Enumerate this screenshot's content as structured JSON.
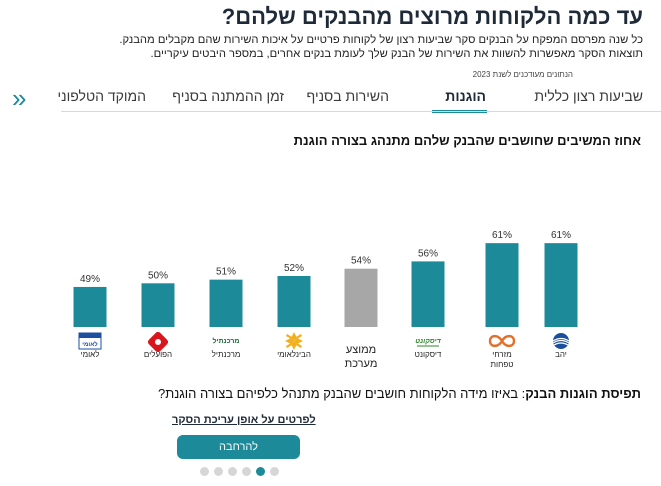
{
  "page": {
    "title": "עד כמה הלקוחות מרוצים מהבנקים שלהם?",
    "description_line1": "כל שנה מפרסם המפקח על הבנקים סקר שביעות רצון של לקוחות פרטיים על איכות השירות שהם מקבלים מהבנק.",
    "description_line2": "תוצאות הסקר מאפשרות להשוות את השירות של הבנק שלך לעומת בנקים אחרים, במספר היבטים עיקריים.",
    "data_note": "הנתונים מעודכנים לשנת 2023"
  },
  "tabs": [
    {
      "label": "שביעות רצון כללית",
      "active": false
    },
    {
      "label": "הוגנות",
      "active": true
    },
    {
      "label": "השירות בסניף",
      "active": false
    },
    {
      "label": "זמן ההמתנה בסניף",
      "active": false
    },
    {
      "label": "המוקד הטלפוני",
      "active": false
    }
  ],
  "tabs_more_icon": "double-chevron-left-icon",
  "chart_data": {
    "type": "bar",
    "title": "אחוז המשיבים שחושבים שהבנק שלהם מתנהג בצורה הוגנת",
    "categories": [
      "יהב",
      "מזרחי טפחות",
      "דיסקונט",
      "ממוצע מערכת",
      "הבינלאומי",
      "מרכנתיל",
      "הפועלים",
      "לאומי"
    ],
    "values": [
      61,
      61,
      56,
      54,
      52,
      51,
      50,
      49
    ],
    "value_labels": [
      "61%",
      "61%",
      "56%",
      "54%",
      "52%",
      "51%",
      "50%",
      "49%"
    ],
    "ylim": [
      0,
      100
    ],
    "colors": {
      "bank": "#1d8a99",
      "average": "#a7a7a7"
    },
    "average_index": 3
  },
  "logos": [
    {
      "name": "יהב",
      "icon": "yahav-globe-icon"
    },
    {
      "name": "מזרחי\nטפחות",
      "icon": "mizrahi-infinity-icon"
    },
    {
      "name": "דיסקונט",
      "icon": "discount-logo-icon",
      "logo_text": "דיסקונט"
    },
    {
      "name": "ממוצע\nמערכת",
      "icon": ""
    },
    {
      "name": "הבינלאומי",
      "icon": "fibi-star-icon"
    },
    {
      "name": "מרכנתיל",
      "icon": "mercantile-logo-icon",
      "logo_text": "מרכנתיל"
    },
    {
      "name": "הפועלים",
      "icon": "hapoalim-diamond-icon"
    },
    {
      "name": "לאומי",
      "icon": "leumi-logo-icon",
      "logo_text": "לאומי"
    }
  ],
  "bottom": {
    "question_bold": "תפיסת הוגנות הבנק",
    "question_rest": ": באיזו מידה הלקוחות חושבים שהבנק מתנהל כלפיהם בצורה הוגנת?",
    "details_link": "לפרטים על אופן עריכת הסקר",
    "vote_button": "להרחבה",
    "pagination": {
      "count": 6,
      "active": 4
    }
  },
  "colors": {
    "accent": "#1d8a99",
    "text": "#1e2a38"
  }
}
